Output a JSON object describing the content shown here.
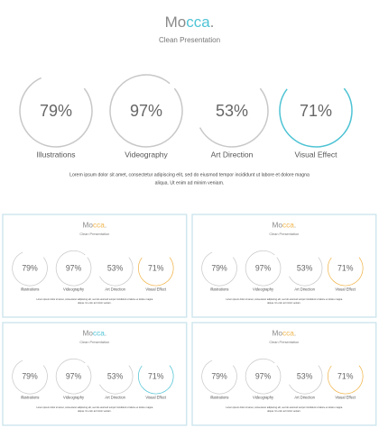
{
  "slides": [
    {
      "title_start": "Mo",
      "title_accent": "cca",
      "title_end": ".",
      "accent_color": "#4ec3d4",
      "subtitle": "Clean Presentation",
      "items": [
        {
          "label": "Illustrations",
          "value": 79,
          "value_label": "79%"
        },
        {
          "label": "Videography",
          "value": 97,
          "value_label": "97%"
        },
        {
          "label": "Art Direction",
          "value": 53,
          "value_label": "53%"
        },
        {
          "label": "Visual Effect",
          "value": 71,
          "value_label": "71%"
        }
      ],
      "body_lines": [
        "Lorem ipsum dolor sit amet, consectetur adipiscing elit, sed do eiusmod tempor incididunt ut labore et dolore magna",
        "aliqua. Ut enim ad minim veniam."
      ]
    },
    {
      "title_start": "Mo",
      "title_accent": "cca",
      "title_end": ".",
      "accent_color": "#f0b44a",
      "subtitle": "Clean Presentation",
      "items": [
        {
          "label": "Illustrations",
          "value": 79,
          "value_label": "79%"
        },
        {
          "label": "Videography",
          "value": 97,
          "value_label": "97%"
        },
        {
          "label": "Art Direction",
          "value": 53,
          "value_label": "53%"
        },
        {
          "label": "Visual Effect",
          "value": 71,
          "value_label": "71%"
        }
      ],
      "body_lines": [
        "Lorem ipsum dolor sit amet, consectetur adipiscing elit, sed do eiusmod tempor incididunt ut labore et dolore magna",
        "aliqua. Ut enim ad minim veniam."
      ]
    },
    {
      "title_start": "Mo",
      "title_accent": "cca",
      "title_end": ".",
      "accent_color": "#f0b44a",
      "subtitle": "Clean Presentation",
      "items": [
        {
          "label": "Illustrations",
          "value": 79,
          "value_label": "79%"
        },
        {
          "label": "Videography",
          "value": 97,
          "value_label": "97%"
        },
        {
          "label": "Art Direction",
          "value": 53,
          "value_label": "53%"
        },
        {
          "label": "Visual Effect",
          "value": 71,
          "value_label": "71%"
        }
      ],
      "body_lines": [
        "Lorem ipsum dolor sit amet, consectetur adipiscing elit, sed do eiusmod tempor incididunt ut labore et dolore magna",
        "aliqua. Ut enim ad minim veniam."
      ]
    },
    {
      "title_start": "Mo",
      "title_accent": "cca",
      "title_end": ".",
      "accent_color": "#4ec3d4",
      "subtitle": "Clean Presentation",
      "items": [
        {
          "label": "Illustrations",
          "value": 79,
          "value_label": "79%"
        },
        {
          "label": "Videography",
          "value": 97,
          "value_label": "97%"
        },
        {
          "label": "Art Direction",
          "value": 53,
          "value_label": "53%"
        },
        {
          "label": "Visual Effect",
          "value": 71,
          "value_label": "71%"
        }
      ],
      "body_lines": [
        "Lorem ipsum dolor sit amet, consectetur adipiscing elit, sed do eiusmod tempor incididunt ut labore et dolore magna",
        "aliqua. Ut enim ad minim veniam."
      ]
    },
    {
      "title_start": "Mo",
      "title_accent": "cca",
      "title_end": ".",
      "accent_color": "#f0b44a",
      "subtitle": "Clean Presentation",
      "items": [
        {
          "label": "Illustrations",
          "value": 79,
          "value_label": "79%"
        },
        {
          "label": "Videography",
          "value": 97,
          "value_label": "97%"
        },
        {
          "label": "Art Direction",
          "value": 53,
          "value_label": "53%"
        },
        {
          "label": "Visual Effect",
          "value": 71,
          "value_label": "71%"
        }
      ],
      "body_lines": [
        "Lorem ipsum dolor sit amet, consectetur adipiscing elit, sed do eiusmod tempor incididunt ut labore et dolore magna",
        "aliqua. Ut enim ad minim veniam."
      ]
    }
  ]
}
